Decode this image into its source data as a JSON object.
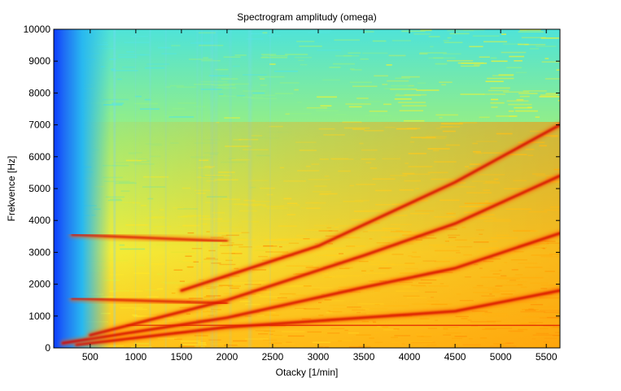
{
  "chart_data": {
    "type": "heatmap",
    "title": "Spectrogram amplitudy (omega)",
    "xlabel": "Otacky [1/min]",
    "ylabel": "Frekvence [Hz]",
    "xlim": [
      100,
      5650
    ],
    "ylim": [
      0,
      10000
    ],
    "xticks": [
      500,
      1000,
      1500,
      2000,
      2500,
      3000,
      3500,
      4000,
      4500,
      5000,
      5500
    ],
    "yticks": [
      0,
      1000,
      2000,
      3000,
      4000,
      5000,
      6000,
      7000,
      8000,
      9000,
      10000
    ],
    "colormap": "jet",
    "grid": false,
    "legend": "none",
    "ridges": [
      {
        "kind": "order",
        "points": [
          [
            350,
            100
          ],
          [
            2000,
            650
          ],
          [
            3500,
            950
          ],
          [
            4500,
            1150
          ],
          [
            5650,
            1800
          ]
        ]
      },
      {
        "kind": "order",
        "points": [
          [
            200,
            150
          ],
          [
            2000,
            950
          ],
          [
            3500,
            1900
          ],
          [
            4500,
            2500
          ],
          [
            5650,
            3600
          ]
        ]
      },
      {
        "kind": "order",
        "points": [
          [
            500,
            400
          ],
          [
            2000,
            1500
          ],
          [
            3500,
            2900
          ],
          [
            4500,
            3900
          ],
          [
            5650,
            5400
          ]
        ]
      },
      {
        "kind": "order",
        "points": [
          [
            1500,
            1800
          ],
          [
            3000,
            3200
          ],
          [
            4500,
            5200
          ],
          [
            5650,
            7000
          ]
        ]
      },
      {
        "kind": "constant",
        "points": [
          [
            300,
            3550
          ],
          [
            2000,
            3350
          ]
        ]
      },
      {
        "kind": "constant",
        "points": [
          [
            300,
            1550
          ],
          [
            2000,
            1400
          ]
        ]
      },
      {
        "kind": "constant",
        "points": [
          [
            900,
            720
          ],
          [
            5650,
            700
          ]
        ]
      }
    ]
  },
  "colors": {
    "low": "#0c3cff",
    "mid_low": "#2fd6ff",
    "mid": "#c8f23a",
    "mid_high": "#f6f01c",
    "high": "#ff7a00",
    "peak": "#c80000"
  }
}
